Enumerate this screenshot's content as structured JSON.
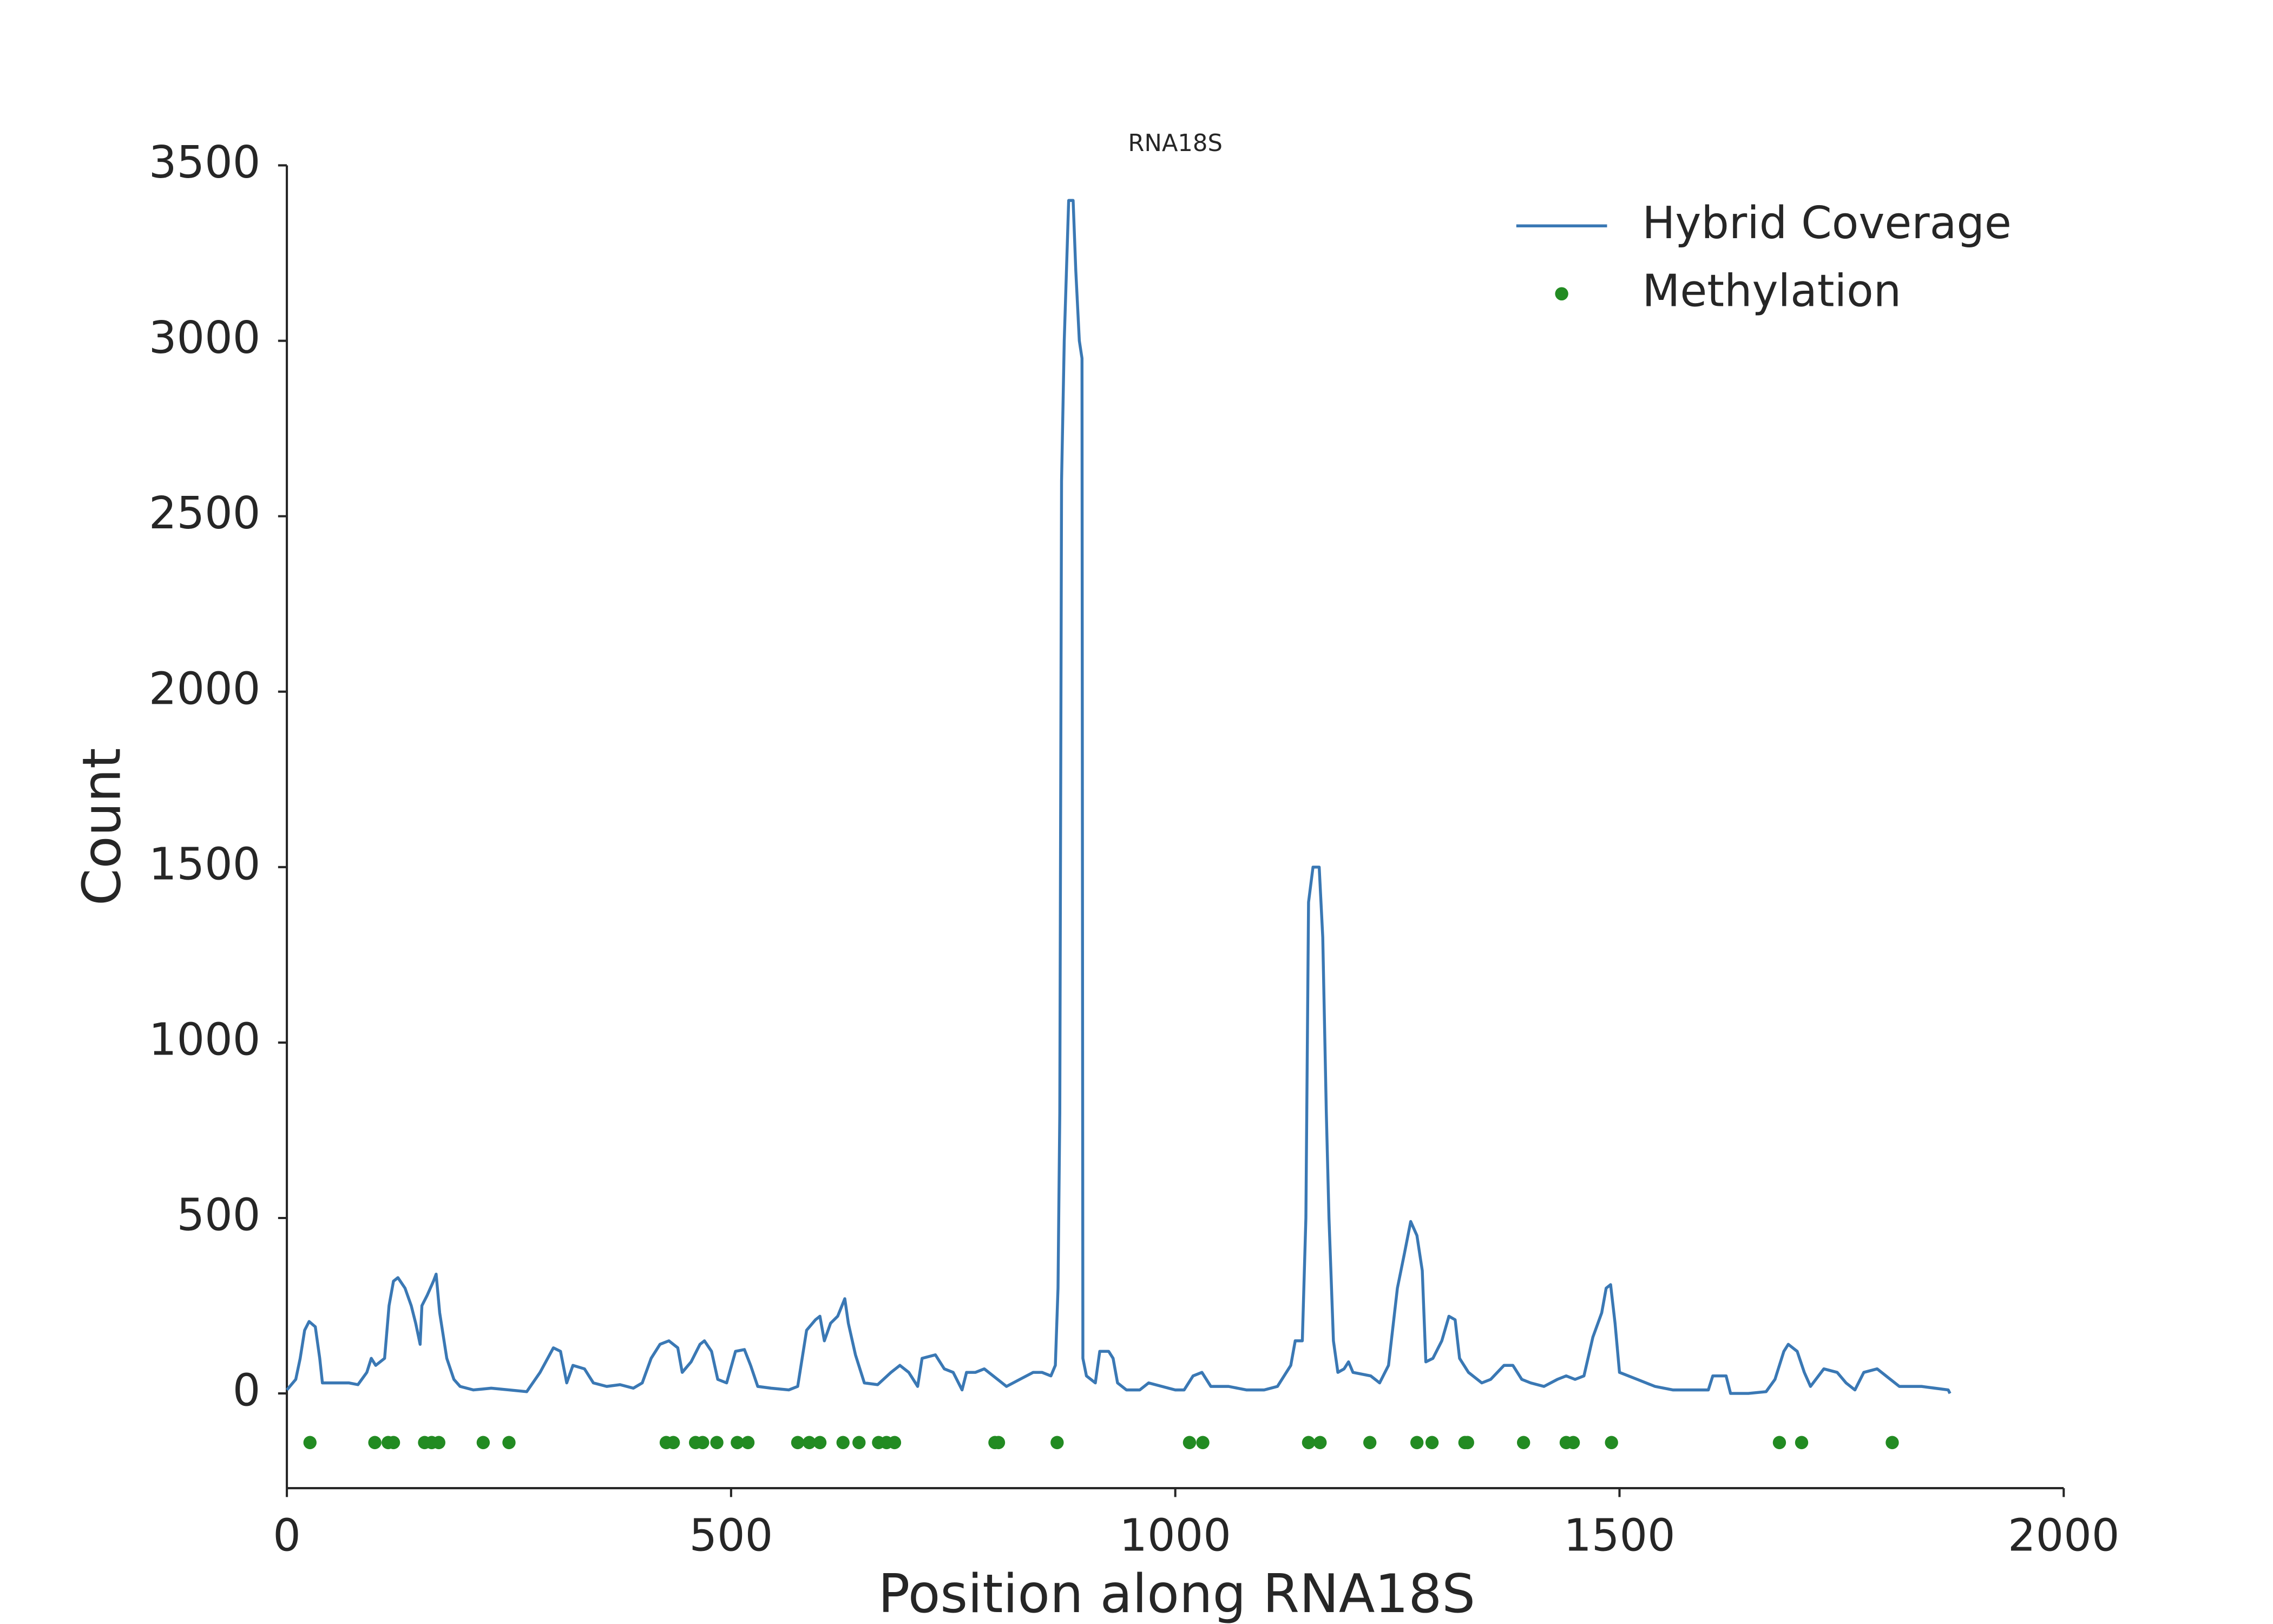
{
  "chart_data": {
    "type": "line",
    "title": "RNA18S",
    "xlabel": "Position along RNA18S",
    "ylabel": "Count",
    "xlim": [
      0,
      2000
    ],
    "xticks": [
      0,
      500,
      1000,
      1500,
      2000
    ],
    "ylim": [
      -270,
      3500
    ],
    "yticks": [
      0,
      500,
      1000,
      1500,
      2000,
      2500,
      3000,
      3500
    ],
    "grid": false,
    "legend": "upper right",
    "series": [
      {
        "name": "Hybrid Coverage",
        "type": "line",
        "color": "#3a78b4",
        "x": [
          0,
          10,
          15,
          20,
          25,
          32,
          37,
          40,
          50,
          70,
          80,
          90,
          95,
          100,
          110,
          115,
          120,
          125,
          133,
          140,
          145,
          150,
          152,
          158,
          165,
          168,
          172,
          180,
          188,
          195,
          210,
          230,
          250,
          270,
          285,
          300,
          308,
          315,
          322,
          335,
          345,
          360,
          375,
          390,
          400,
          410,
          420,
          430,
          440,
          445,
          455,
          465,
          470,
          478,
          485,
          495,
          505,
          515,
          522,
          530,
          545,
          565,
          575,
          585,
          595,
          600,
          605,
          612,
          620,
          628,
          632,
          640,
          650,
          665,
          680,
          690,
          700,
          710,
          715,
          730,
          740,
          750,
          760,
          765,
          775,
          785,
          800,
          810,
          825,
          840,
          850,
          860,
          865,
          868,
          870,
          872,
          875,
          880,
          885,
          888,
          892,
          895,
          896,
          900,
          910,
          915,
          925,
          930,
          935,
          945,
          960,
          970,
          985,
          1000,
          1010,
          1020,
          1030,
          1040,
          1060,
          1080,
          1100,
          1115,
          1130,
          1135,
          1143,
          1147,
          1150,
          1155,
          1162,
          1166,
          1170,
          1173,
          1178,
          1183,
          1190,
          1195,
          1200,
          1220,
          1230,
          1240,
          1250,
          1258,
          1265,
          1272,
          1278,
          1282,
          1290,
          1300,
          1308,
          1315,
          1320,
          1330,
          1345,
          1355,
          1370,
          1380,
          1390,
          1400,
          1415,
          1430,
          1440,
          1450,
          1460,
          1470,
          1480,
          1485,
          1490,
          1495,
          1500,
          1520,
          1540,
          1560,
          1580,
          1600,
          1605,
          1620,
          1625,
          1645,
          1665,
          1675,
          1685,
          1690,
          1700,
          1708,
          1715,
          1730,
          1745,
          1755,
          1765,
          1775,
          1790,
          1800,
          1815,
          1840,
          1855,
          1870,
          1872
        ],
        "values": [
          10,
          40,
          100,
          180,
          205,
          190,
          100,
          30,
          30,
          30,
          25,
          60,
          100,
          80,
          100,
          250,
          320,
          330,
          300,
          250,
          200,
          140,
          250,
          280,
          320,
          340,
          230,
          100,
          40,
          20,
          10,
          15,
          10,
          5,
          60,
          130,
          120,
          30,
          80,
          70,
          30,
          20,
          25,
          15,
          30,
          100,
          140,
          150,
          130,
          60,
          90,
          140,
          150,
          120,
          40,
          30,
          120,
          125,
          80,
          20,
          15,
          10,
          20,
          180,
          210,
          220,
          150,
          200,
          220,
          270,
          200,
          110,
          30,
          25,
          60,
          80,
          60,
          20,
          100,
          110,
          70,
          60,
          10,
          60,
          60,
          70,
          40,
          20,
          40,
          60,
          60,
          50,
          80,
          300,
          800,
          2600,
          3000,
          3400,
          3400,
          3200,
          3000,
          2950,
          100,
          50,
          30,
          120,
          120,
          100,
          30,
          10,
          10,
          30,
          20,
          10,
          10,
          50,
          60,
          20,
          20,
          10,
          10,
          20,
          80,
          150,
          150,
          500,
          1400,
          1500,
          1500,
          1300,
          800,
          500,
          150,
          60,
          70,
          90,
          60,
          50,
          30,
          80,
          300,
          400,
          490,
          450,
          350,
          90,
          100,
          150,
          220,
          210,
          100,
          60,
          30,
          40,
          80,
          80,
          40,
          30,
          20,
          40,
          50,
          40,
          50,
          160,
          230,
          300,
          310,
          200,
          60,
          40,
          20,
          10,
          10,
          10,
          50,
          50,
          0,
          0,
          5,
          40,
          120,
          140,
          120,
          60,
          20,
          70,
          60,
          30,
          10,
          60,
          70,
          50,
          20,
          20,
          15,
          10,
          0
        ]
      },
      {
        "name": "Methylation",
        "type": "scatter",
        "color": "#228b22",
        "x": [
          26,
          99,
          114,
          120,
          155,
          163,
          171,
          221,
          250,
          427,
          435,
          460,
          468,
          484,
          507,
          519,
          575,
          588,
          600,
          626,
          644,
          666,
          675,
          684,
          797,
          801,
          867,
          1016,
          1031,
          1150,
          1163,
          1219,
          1272,
          1289,
          1326,
          1329,
          1392,
          1440,
          1448,
          1491,
          1680,
          1705,
          1807
        ],
        "values": [
          -140,
          -140,
          -140,
          -140,
          -140,
          -140,
          -140,
          -140,
          -140,
          -140,
          -140,
          -140,
          -140,
          -140,
          -140,
          -140,
          -140,
          -140,
          -140,
          -140,
          -140,
          -140,
          -140,
          -140,
          -140,
          -140,
          -140,
          -140,
          -140,
          -140,
          -140,
          -140,
          -140,
          -140,
          -140,
          -140,
          -140,
          -140,
          -140,
          -140,
          -140,
          -140,
          -140
        ]
      }
    ]
  }
}
